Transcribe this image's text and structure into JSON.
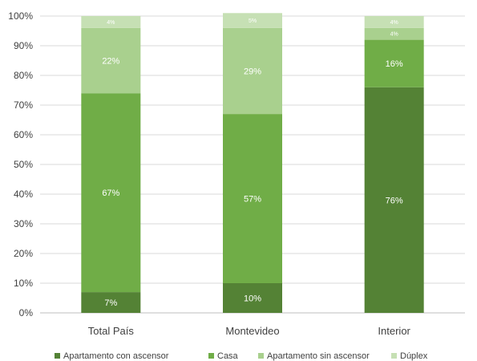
{
  "chart_data": {
    "type": "bar",
    "stacked": true,
    "title": "",
    "xlabel": "",
    "ylabel": "",
    "ylim": [
      0,
      100
    ],
    "y_ticks": [
      "0%",
      "10%",
      "20%",
      "30%",
      "40%",
      "50%",
      "60%",
      "70%",
      "80%",
      "90%",
      "100%"
    ],
    "grid": true,
    "legend_position": "bottom",
    "categories": [
      "Total País",
      "Montevideo",
      "Interior"
    ],
    "series": [
      {
        "name": "Apartamento con ascensor",
        "values": [
          7,
          10,
          76
        ],
        "labels": [
          "7%",
          "10%",
          "76%"
        ],
        "color": "#548235"
      },
      {
        "name": "Casa",
        "values": [
          67,
          57,
          16
        ],
        "labels": [
          "67%",
          "57%",
          "16%"
        ],
        "color": "#70ad47"
      },
      {
        "name": "Apartamento sin ascensor",
        "values": [
          22,
          29,
          4
        ],
        "labels": [
          "22%",
          "29%",
          "4%"
        ],
        "color": "#a9d08e"
      },
      {
        "name": "Dúplex",
        "values": [
          4,
          5,
          4
        ],
        "labels": [
          "4%",
          "5%",
          "4%"
        ],
        "color": "#c6e0b4"
      }
    ]
  }
}
